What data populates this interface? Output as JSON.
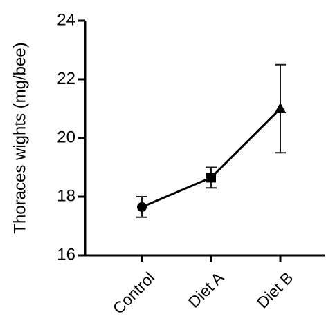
{
  "chart_data": {
    "type": "line",
    "title": "",
    "xlabel": "",
    "ylabel": "Thoraces wights (mg/bee)",
    "ylim": [
      16,
      24
    ],
    "yticks": [
      16,
      18,
      20,
      22,
      24
    ],
    "categories": [
      "Control",
      "Diet A",
      "Diet B"
    ],
    "series": [
      {
        "values": [
          17.65,
          18.65,
          21.0
        ],
        "error_low": [
          17.3,
          18.3,
          19.5
        ],
        "error_high": [
          18.0,
          19.0,
          22.5
        ],
        "markers": [
          "circle",
          "square",
          "triangle"
        ]
      }
    ],
    "grid": false,
    "legend": "none"
  }
}
